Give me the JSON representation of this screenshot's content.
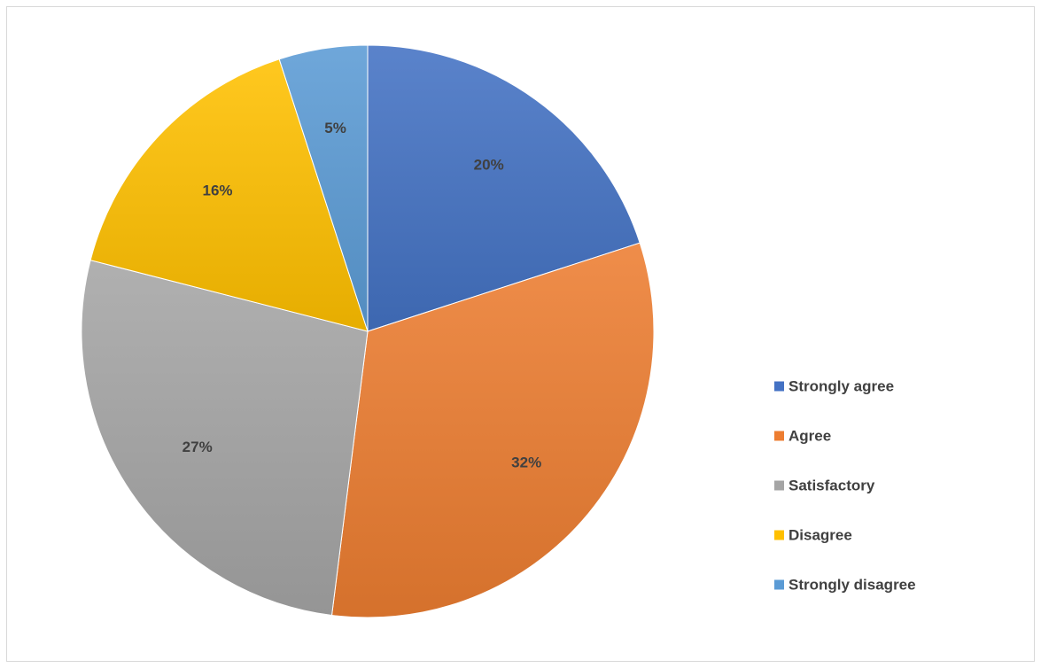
{
  "chart_data": {
    "type": "pie",
    "title": "",
    "categories": [
      "Strongly agree",
      "Agree",
      "Satisfactory",
      "Disagree",
      "Strongly disagree"
    ],
    "values": [
      20,
      32,
      27,
      16,
      5
    ],
    "labels": [
      "20%",
      "32%",
      "27%",
      "16%",
      "5%"
    ],
    "colors": [
      "#4472c4",
      "#ed7d31",
      "#a5a5a5",
      "#ffc000",
      "#5b9bd5"
    ],
    "legend": "right",
    "start_angle_deg": 0,
    "direction": "clockwise"
  }
}
